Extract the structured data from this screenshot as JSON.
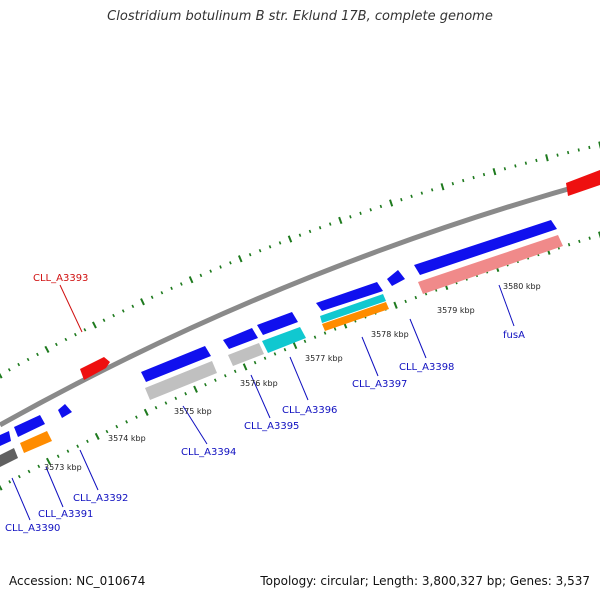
{
  "title": "Clostridium botulinum B str. Eklund 17B, complete genome",
  "footer": {
    "accession": "Accession: NC_010674",
    "summary": "Topology: circular; Length: 3,800,327 bp; Genes: 3,537"
  },
  "colors": {
    "backbone": "#8a8a8a",
    "ticks": "#1e7a1e",
    "gene_forward": "#1010ee",
    "rna": "#ee1010",
    "cds_grey": "#c0c0c0",
    "cds_cyan": "#10c8d0",
    "cds_orange": "#ff8c00",
    "cds_pink": "#f08a8a",
    "label_blue": "#1010c0",
    "label_red": "#d01010"
  },
  "kbp_labels": [
    {
      "id": "3573",
      "text": "3573 kbp"
    },
    {
      "id": "3574",
      "text": "3574 kbp"
    },
    {
      "id": "3575",
      "text": "3575 kbp"
    },
    {
      "id": "3576",
      "text": "3576 kbp"
    },
    {
      "id": "3577",
      "text": "3577 kbp"
    },
    {
      "id": "3578",
      "text": "3578 kbp"
    },
    {
      "id": "3579",
      "text": "3579 kbp"
    },
    {
      "id": "3580",
      "text": "3580 kbp"
    }
  ],
  "gene_labels": [
    {
      "id": "CLL_A3393",
      "text": "CLL_A3393",
      "color": "red"
    },
    {
      "id": "CLL_A3390",
      "text": "CLL_A3390",
      "color": "blue"
    },
    {
      "id": "CLL_A3391",
      "text": "CLL_A3391",
      "color": "blue"
    },
    {
      "id": "CLL_A3392",
      "text": "CLL_A3392",
      "color": "blue"
    },
    {
      "id": "CLL_A3394",
      "text": "CLL_A3394",
      "color": "blue"
    },
    {
      "id": "CLL_A3395",
      "text": "CLL_A3395",
      "color": "blue"
    },
    {
      "id": "CLL_A3396",
      "text": "CLL_A3396",
      "color": "blue"
    },
    {
      "id": "CLL_A3397",
      "text": "CLL_A3397",
      "color": "blue"
    },
    {
      "id": "CLL_A3398",
      "text": "CLL_A3398",
      "color": "blue"
    },
    {
      "id": "fusA",
      "text": "fusA",
      "color": "blue"
    }
  ]
}
